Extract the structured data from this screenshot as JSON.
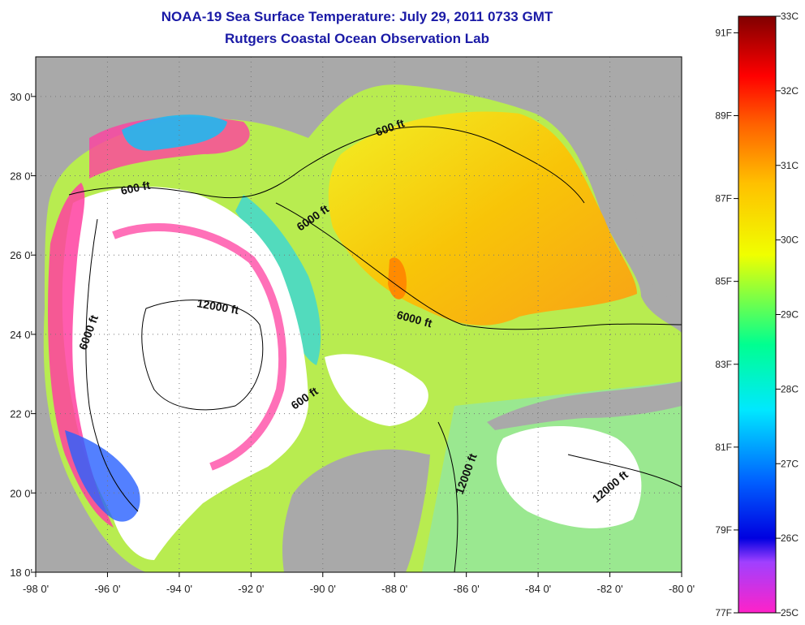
{
  "title": {
    "line1": "NOAA-19 Sea Surface Temperature:  July 29, 2011 0733 GMT",
    "line2": "Rutgers Coastal Ocean Observation Lab"
  },
  "map": {
    "lon_range": [
      -98,
      -80
    ],
    "lat_range": [
      18,
      31
    ],
    "x_ticks": [
      {
        "lon": -98,
        "label": "-98 0'"
      },
      {
        "lon": -96,
        "label": "-96 0'"
      },
      {
        "lon": -94,
        "label": "-94 0'"
      },
      {
        "lon": -92,
        "label": "-92 0'"
      },
      {
        "lon": -90,
        "label": "-90 0'"
      },
      {
        "lon": -88,
        "label": "-88 0'"
      },
      {
        "lon": -86,
        "label": "-86 0'"
      },
      {
        "lon": -84,
        "label": "-84 0'"
      },
      {
        "lon": -82,
        "label": "-82 0'"
      },
      {
        "lon": -80,
        "label": "-80 0'"
      }
    ],
    "y_ticks": [
      {
        "lat": 30,
        "label": "30 0'"
      },
      {
        "lat": 28,
        "label": "28 0'"
      },
      {
        "lat": 26,
        "label": "26 0'"
      },
      {
        "lat": 24,
        "label": "24 0'"
      },
      {
        "lat": 22,
        "label": "22 0'"
      },
      {
        "lat": 20,
        "label": "20 0'"
      },
      {
        "lat": 18,
        "label": "18 0'"
      }
    ],
    "contour_labels": [
      "600 ft",
      "600 ft",
      "6000 ft",
      "12000 ft",
      "6000 ft",
      "6000 ft",
      "600 ft",
      "12000 ft",
      "12000 ft"
    ],
    "colors": {
      "land": "#a9a9a9",
      "cloud": "#ffffff",
      "water_warm": "#ffc800",
      "water_mid": "#c8f040",
      "water_cool": "#40e0c0",
      "cold_pink": "#ff40a0"
    }
  },
  "colorbar": {
    "celsius": [
      "33C",
      "32C",
      "31C",
      "30C",
      "29C",
      "28C",
      "27C",
      "26C",
      "25C"
    ],
    "fahrenheit": [
      "91F",
      "89F",
      "87F",
      "85F",
      "83F",
      "81F",
      "79F",
      "77F"
    ],
    "stops": [
      "#ff22c8",
      "#9933ff",
      "#0000ff",
      "#00a0ff",
      "#00ffff",
      "#00ff80",
      "#ffff00",
      "#ff8000",
      "#ff0000",
      "#800000"
    ]
  }
}
